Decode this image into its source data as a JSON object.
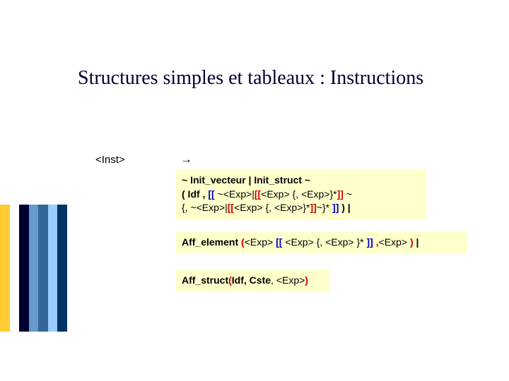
{
  "title": "Structures simples et tableaux : Instructions",
  "label": "<Inst>",
  "arrow": "→",
  "box1": {
    "line1": {
      "t1": "~ Init_vecteur | Init_struct ~"
    },
    "line2": {
      "t1": "( Idf , ",
      "t2": "[[",
      "t3": " ~<Exp>|",
      "t4": "[[",
      "t5": "<Exp> {, <Exp>}*",
      "t6": "]]",
      "t7": " ~"
    },
    "line3": {
      "t1": "{, ~<Exp>|",
      "t2": "[[",
      "t3": "<Exp> {, <Exp>}*",
      "t4": "]]",
      "t5": "~}* ",
      "t6": " ]]",
      "t7": " ) |"
    }
  },
  "box2": {
    "t1": "Aff_element ",
    "t2": "(",
    "t3": "<Exp> ",
    "t4": "[[",
    "t5": " <Exp> {, <Exp> }* ",
    "t6": "]]",
    "t7": " ,",
    "t8": "<Exp> ",
    "t9": ")",
    "t10": " |"
  },
  "box3": {
    "t1": "Aff_struct",
    "t2": "(",
    "t3": "Idf, Cste",
    "t4": ", <Exp>",
    "t5": ")"
  },
  "stripes": [
    "#ffcc33",
    "#ffffff",
    "#000033",
    "#6699cc",
    "#336699",
    "#99ccff",
    "#003366"
  ]
}
